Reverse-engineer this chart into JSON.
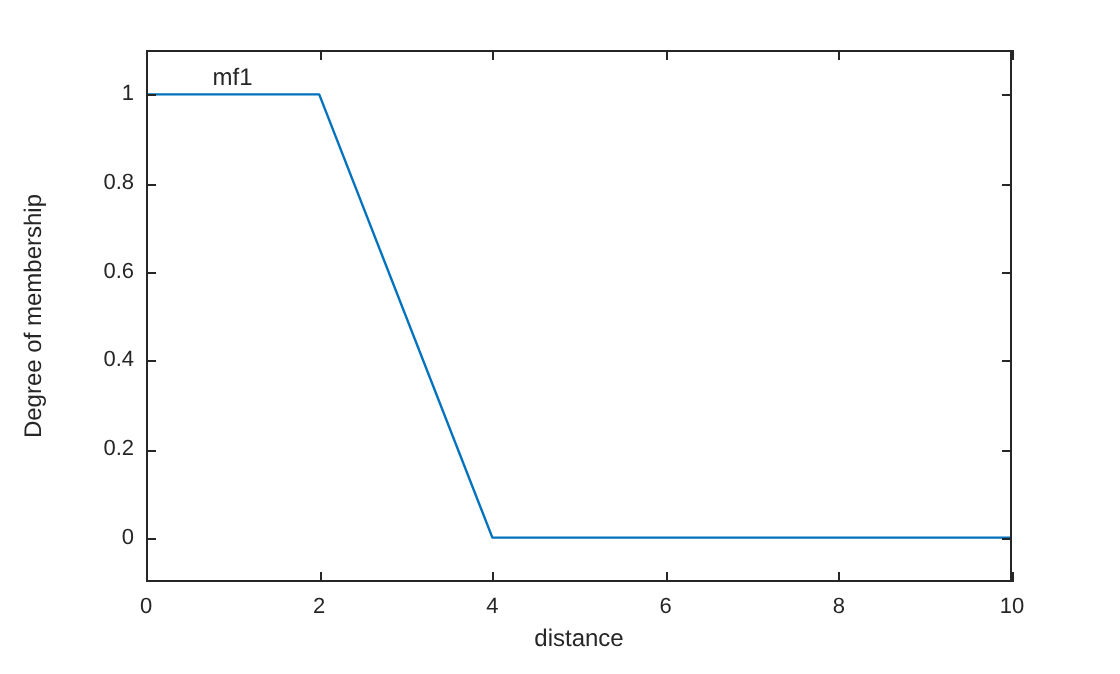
{
  "chart_data": {
    "type": "line",
    "xlabel": "distance",
    "ylabel": "Degree of membership",
    "x": [
      0,
      2,
      4,
      10
    ],
    "series": [
      {
        "color": "#0072bd",
        "values": [
          1,
          1,
          0,
          0
        ]
      }
    ],
    "xlim": [
      0,
      10
    ],
    "xticks": [
      0,
      2,
      4,
      6,
      8,
      10
    ],
    "ylim": [
      -0.1,
      1.1
    ],
    "yticks": [
      0,
      0.2,
      0.4,
      0.6,
      0.8,
      1
    ],
    "annotations": [
      {
        "text": "mf1",
        "x": 1,
        "y": 1
      }
    ],
    "grid": false,
    "legend": false,
    "marker": "none",
    "line_style": "solid"
  }
}
